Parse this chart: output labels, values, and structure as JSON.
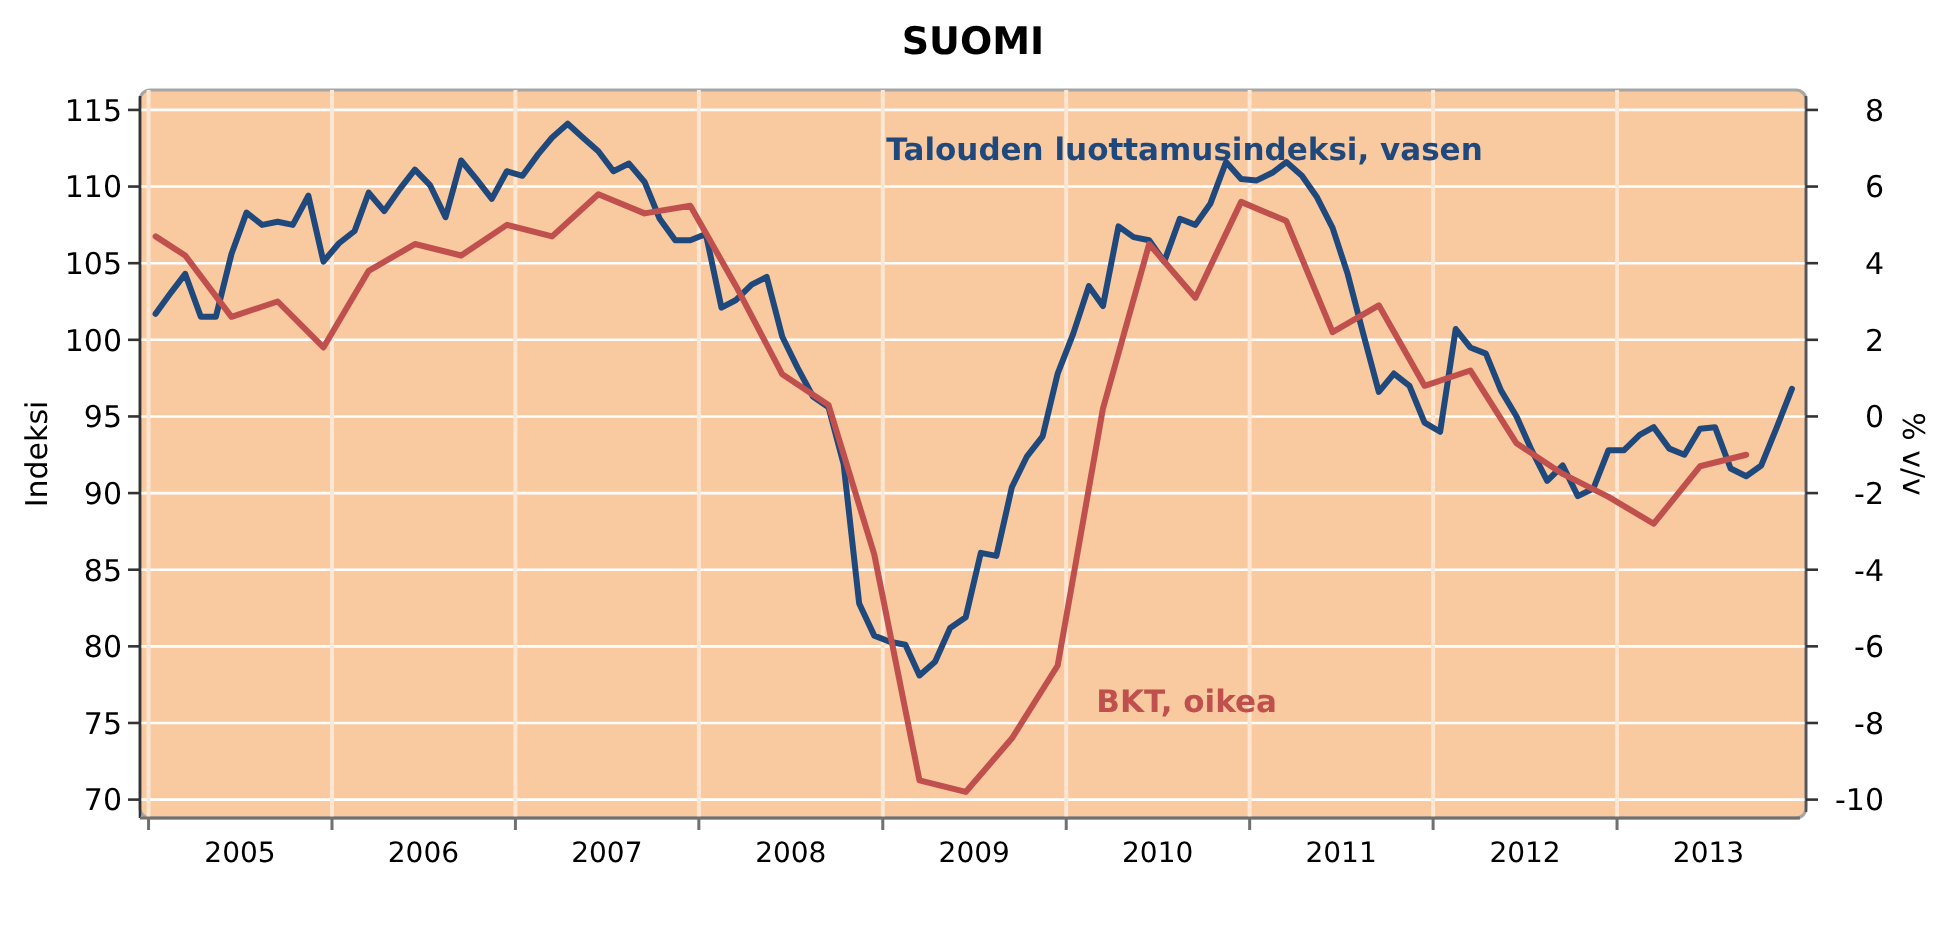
{
  "chart_data": {
    "type": "line",
    "title": "SUOMI",
    "ylabel": "Indeksi",
    "y2label": "% v/v",
    "xlim": [
      "2004-12-15",
      "2014-01-12"
    ],
    "xticks": [
      {
        "value": "2005-01-01",
        "label": null
      },
      {
        "value": "2005-07-02",
        "label": "2005"
      },
      {
        "value": "2006-01-01",
        "label": null
      },
      {
        "value": "2006-07-02",
        "label": "2006"
      },
      {
        "value": "2007-01-01",
        "label": null
      },
      {
        "value": "2007-07-02",
        "label": "2007"
      },
      {
        "value": "2008-01-01",
        "label": null
      },
      {
        "value": "2008-07-02",
        "label": "2008"
      },
      {
        "value": "2009-01-01",
        "label": null
      },
      {
        "value": "2009-07-02",
        "label": "2009"
      },
      {
        "value": "2010-01-01",
        "label": null
      },
      {
        "value": "2010-07-02",
        "label": "2010"
      },
      {
        "value": "2011-01-01",
        "label": null
      },
      {
        "value": "2011-07-02",
        "label": "2011"
      },
      {
        "value": "2012-01-01",
        "label": null
      },
      {
        "value": "2012-07-02",
        "label": "2012"
      },
      {
        "value": "2013-01-01",
        "label": null
      },
      {
        "value": "2013-07-02",
        "label": "2013"
      }
    ],
    "ylim": [
      68.8,
      116.3
    ],
    "yticks": [
      70,
      75,
      80,
      85,
      90,
      95,
      100,
      105,
      110,
      115
    ],
    "y2lim": [
      -10.48,
      8.52
    ],
    "y2ticks": [
      -10,
      -8,
      -6,
      -4,
      -2,
      0,
      2,
      4,
      6,
      8
    ],
    "grid": true,
    "series": [
      {
        "name": "Talouden luottamusindeksi, vasen",
        "color": "#1f497d",
        "x": [
          "2005-01-15",
          "2005-02-15",
          "2005-03-15",
          "2005-04-15",
          "2005-05-15",
          "2005-06-15",
          "2005-07-15",
          "2005-08-15",
          "2005-09-15",
          "2005-10-15",
          "2005-11-15",
          "2005-12-15",
          "2006-01-15",
          "2006-02-15",
          "2006-03-15",
          "2006-04-15",
          "2006-05-15",
          "2006-06-15",
          "2006-07-15",
          "2006-08-15",
          "2006-09-15",
          "2006-10-15",
          "2006-11-15",
          "2006-12-15",
          "2007-01-15",
          "2007-02-15",
          "2007-03-15",
          "2007-04-15",
          "2007-05-15",
          "2007-06-15",
          "2007-07-15",
          "2007-08-15",
          "2007-09-15",
          "2007-10-15",
          "2007-11-15",
          "2007-12-15",
          "2008-01-15",
          "2008-02-15",
          "2008-03-15",
          "2008-04-15",
          "2008-05-15",
          "2008-06-15",
          "2008-07-15",
          "2008-08-15",
          "2008-09-15",
          "2008-10-15",
          "2008-11-15",
          "2008-12-15",
          "2009-01-15",
          "2009-02-15",
          "2009-03-15",
          "2009-04-15",
          "2009-05-15",
          "2009-06-15",
          "2009-07-15",
          "2009-08-15",
          "2009-09-15",
          "2009-10-15",
          "2009-11-15",
          "2009-12-15",
          "2010-01-15",
          "2010-02-15",
          "2010-03-15",
          "2010-04-15",
          "2010-05-15",
          "2010-06-15",
          "2010-07-15",
          "2010-08-15",
          "2010-09-15",
          "2010-10-15",
          "2010-11-15",
          "2010-12-15",
          "2011-01-15",
          "2011-02-15",
          "2011-03-15",
          "2011-04-15",
          "2011-05-15",
          "2011-06-15",
          "2011-07-15",
          "2011-08-15",
          "2011-09-15",
          "2011-10-15",
          "2011-11-15",
          "2011-12-15",
          "2012-01-15",
          "2012-02-15",
          "2012-03-15",
          "2012-04-15",
          "2012-05-15",
          "2012-06-15",
          "2012-07-15",
          "2012-08-15",
          "2012-09-15",
          "2012-10-15",
          "2012-11-15",
          "2012-12-15",
          "2013-01-15",
          "2013-02-15",
          "2013-03-15",
          "2013-04-15",
          "2013-05-15",
          "2013-06-15",
          "2013-07-15",
          "2013-08-15",
          "2013-09-15",
          "2013-10-15",
          "2013-11-15",
          "2013-12-15"
        ],
        "values": [
          101.7,
          103.1,
          104.3,
          101.5,
          101.5,
          105.6,
          108.3,
          107.5,
          107.7,
          107.5,
          109.4,
          105.1,
          106.3,
          107.1,
          109.6,
          108.4,
          109.8,
          111.1,
          110.1,
          108.0,
          111.7,
          110.5,
          109.2,
          111.0,
          110.7,
          112.1,
          113.2,
          114.1,
          113.2,
          112.3,
          111.0,
          111.5,
          110.3,
          107.9,
          106.5,
          106.5,
          106.9,
          102.1,
          102.6,
          103.6,
          104.1,
          100.2,
          98.2,
          96.3,
          95.6,
          91.9,
          82.8,
          80.7,
          80.3,
          80.1,
          78.1,
          79.0,
          81.2,
          81.9,
          86.1,
          85.9,
          90.4,
          92.4,
          93.7,
          97.8,
          100.4,
          103.5,
          102.2,
          107.4,
          106.7,
          106.5,
          105.1,
          107.9,
          107.5,
          108.9,
          111.6,
          110.5,
          110.4,
          110.9,
          111.6,
          110.7,
          109.3,
          107.3,
          104.3,
          100.4,
          96.6,
          97.8,
          97.0,
          94.6,
          94.0,
          100.7,
          99.5,
          99.1,
          96.7,
          95.0,
          92.8,
          90.8,
          91.8,
          89.8,
          90.3,
          92.8,
          92.8,
          93.8,
          94.3,
          92.9,
          92.5,
          94.2,
          94.3,
          91.6,
          91.1,
          91.8,
          94.3,
          96.8
        ]
      },
      {
        "name": "BKT, oikea",
        "color": "#c0504d",
        "axis": "y2",
        "x": [
          "2005-01-15",
          "2005-03-15",
          "2005-06-15",
          "2005-09-15",
          "2005-12-15",
          "2006-03-15",
          "2006-06-15",
          "2006-09-15",
          "2006-12-15",
          "2007-03-15",
          "2007-06-15",
          "2007-09-15",
          "2007-12-15",
          "2008-03-15",
          "2008-06-15",
          "2008-09-15",
          "2008-12-15",
          "2009-03-15",
          "2009-06-15",
          "2009-09-15",
          "2009-12-15",
          "2010-03-15",
          "2010-06-15",
          "2010-09-15",
          "2010-12-15",
          "2011-03-15",
          "2011-06-15",
          "2011-09-15",
          "2011-12-15",
          "2012-03-15",
          "2012-06-15",
          "2012-09-15",
          "2012-12-15",
          "2013-03-15",
          "2013-06-15",
          "2013-09-15"
        ],
        "values": [
          4.7,
          4.2,
          2.6,
          3.0,
          1.8,
          3.8,
          4.5,
          4.2,
          5.0,
          4.7,
          5.8,
          5.3,
          5.5,
          3.4,
          1.1,
          0.3,
          -3.6,
          -9.5,
          -9.8,
          -8.4,
          -6.5,
          0.2,
          4.5,
          3.1,
          5.6,
          5.1,
          2.2,
          2.9,
          0.8,
          1.2,
          -0.7,
          -1.5,
          -2.1,
          -2.8,
          -1.3,
          -1.0
        ]
      }
    ]
  }
}
